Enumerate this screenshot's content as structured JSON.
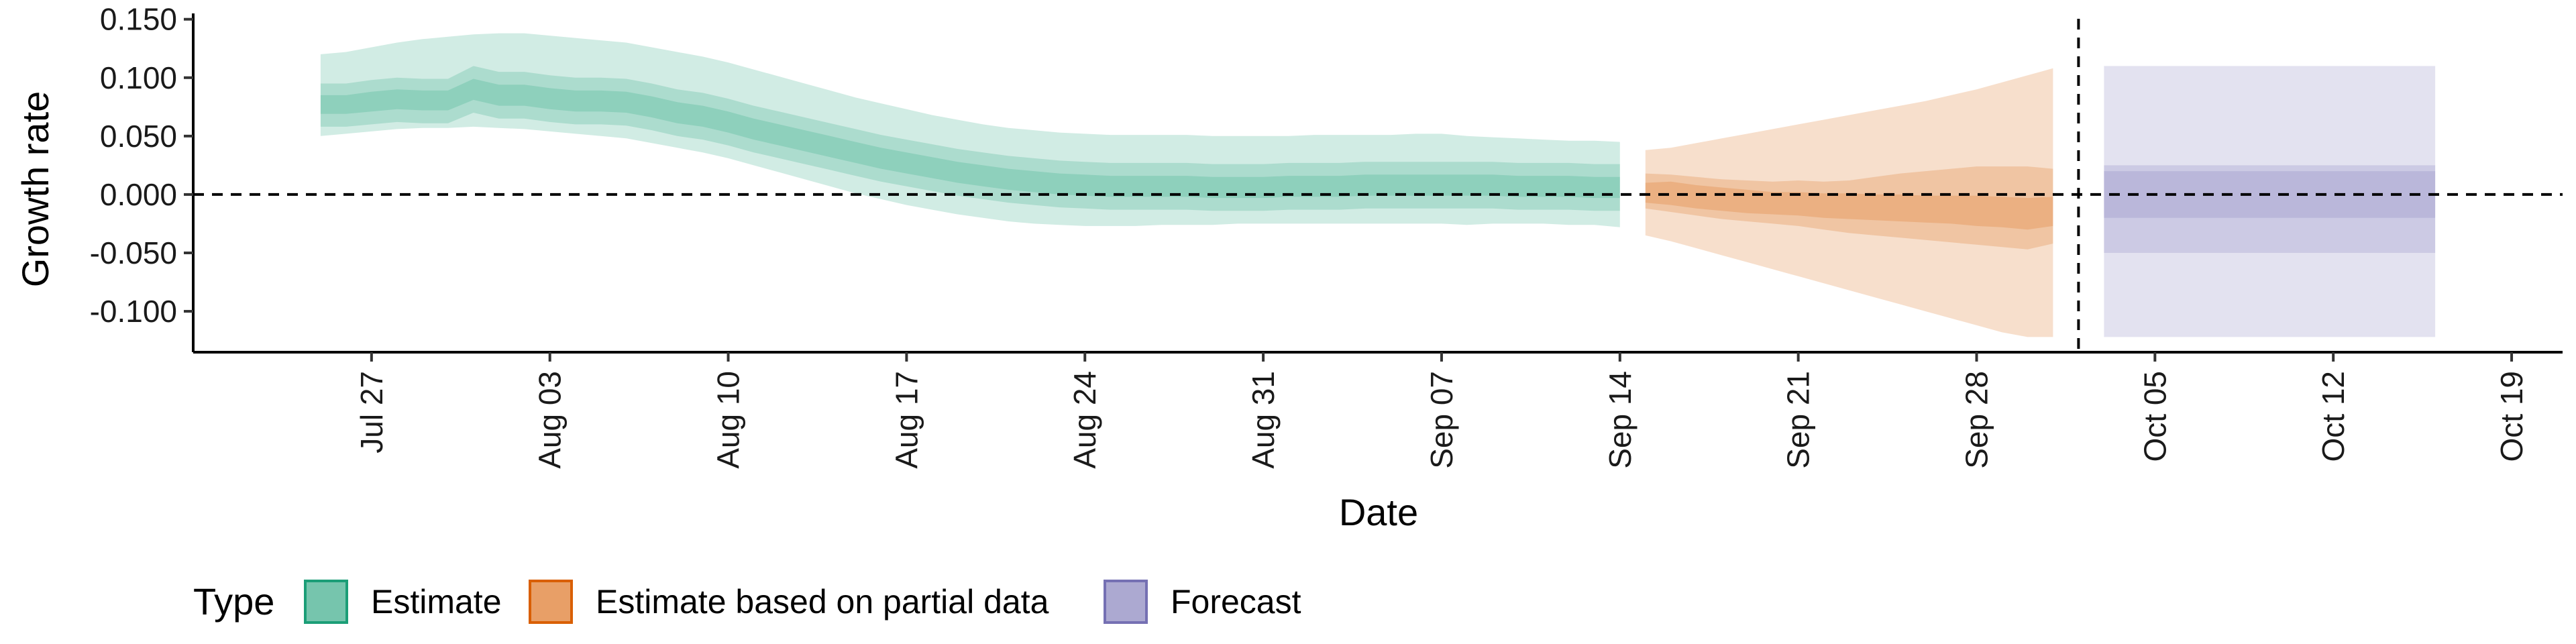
{
  "chart_data": {
    "type": "area",
    "xlabel": "Date",
    "ylabel": "Growth rate",
    "ylim": [
      -0.135,
      0.155
    ],
    "yticks": [
      -0.1,
      -0.05,
      0.0,
      0.05,
      0.1,
      0.15
    ],
    "ytick_labels": [
      "-0.100",
      "-0.050",
      "0.000",
      "0.050",
      "0.100",
      "0.150"
    ],
    "xlim": [
      "2020-07-20",
      "2020-10-21"
    ],
    "xticks": [
      "2020-07-27",
      "2020-08-03",
      "2020-08-10",
      "2020-08-17",
      "2020-08-24",
      "2020-08-31",
      "2020-09-07",
      "2020-09-14",
      "2020-09-21",
      "2020-09-28",
      "2020-10-05",
      "2020-10-12",
      "2020-10-19"
    ],
    "xtick_labels": [
      "Jul 27",
      "Aug 03",
      "Aug 10",
      "Aug 17",
      "Aug 24",
      "Aug 31",
      "Sep 07",
      "Sep 14",
      "Sep 21",
      "Sep 28",
      "Oct 05",
      "Oct 12",
      "Oct 19"
    ],
    "reference_lines": {
      "horizontal_y": 0.0,
      "vertical_x": "2020-10-02"
    },
    "grid": false,
    "legend": {
      "position": "bottom-left",
      "title": "Type",
      "items": [
        {
          "label": "Estimate",
          "color": "#1b9e77"
        },
        {
          "label": "Estimate based on partial data",
          "color": "#d95f02"
        },
        {
          "label": "Forecast",
          "color": "#7570b3"
        }
      ]
    },
    "series": [
      {
        "name": "Estimate",
        "color": "#1b9e77",
        "x": [
          "2020-07-25",
          "2020-07-26",
          "2020-07-27",
          "2020-07-28",
          "2020-07-29",
          "2020-07-30",
          "2020-07-31",
          "2020-08-01",
          "2020-08-02",
          "2020-08-03",
          "2020-08-04",
          "2020-08-05",
          "2020-08-06",
          "2020-08-07",
          "2020-08-08",
          "2020-08-09",
          "2020-08-10",
          "2020-08-11",
          "2020-08-12",
          "2020-08-13",
          "2020-08-14",
          "2020-08-15",
          "2020-08-16",
          "2020-08-17",
          "2020-08-18",
          "2020-08-19",
          "2020-08-20",
          "2020-08-21",
          "2020-08-22",
          "2020-08-23",
          "2020-08-24",
          "2020-08-25",
          "2020-08-26",
          "2020-08-27",
          "2020-08-28",
          "2020-08-29",
          "2020-08-30",
          "2020-08-31",
          "2020-09-01",
          "2020-09-02",
          "2020-09-03",
          "2020-09-04",
          "2020-09-05",
          "2020-09-06",
          "2020-09-07",
          "2020-09-08",
          "2020-09-09",
          "2020-09-10",
          "2020-09-11",
          "2020-09-12",
          "2020-09-13",
          "2020-09-14"
        ],
        "median": [
          0.076,
          0.076,
          0.079,
          0.081,
          0.08,
          0.08,
          0.09,
          0.085,
          0.085,
          0.082,
          0.08,
          0.08,
          0.079,
          0.075,
          0.07,
          0.067,
          0.062,
          0.056,
          0.051,
          0.046,
          0.041,
          0.036,
          0.031,
          0.027,
          0.023,
          0.019,
          0.016,
          0.013,
          0.011,
          0.009,
          0.008,
          0.007,
          0.007,
          0.007,
          0.007,
          0.006,
          0.006,
          0.006,
          0.007,
          0.007,
          0.007,
          0.008,
          0.008,
          0.008,
          0.008,
          0.008,
          0.008,
          0.007,
          0.007,
          0.007,
          0.006,
          0.006
        ],
        "ci20": [
          [
            0.069,
            0.085
          ],
          [
            0.069,
            0.085
          ],
          [
            0.071,
            0.088
          ],
          [
            0.073,
            0.09
          ],
          [
            0.072,
            0.089
          ],
          [
            0.072,
            0.089
          ],
          [
            0.081,
            0.099
          ],
          [
            0.076,
            0.094
          ],
          [
            0.076,
            0.094
          ],
          [
            0.073,
            0.091
          ],
          [
            0.071,
            0.089
          ],
          [
            0.071,
            0.089
          ],
          [
            0.07,
            0.088
          ],
          [
            0.066,
            0.084
          ],
          [
            0.061,
            0.079
          ],
          [
            0.058,
            0.076
          ],
          [
            0.053,
            0.071
          ],
          [
            0.047,
            0.065
          ],
          [
            0.042,
            0.06
          ],
          [
            0.037,
            0.055
          ],
          [
            0.032,
            0.05
          ],
          [
            0.027,
            0.045
          ],
          [
            0.022,
            0.04
          ],
          [
            0.018,
            0.036
          ],
          [
            0.014,
            0.032
          ],
          [
            0.01,
            0.028
          ],
          [
            0.007,
            0.025
          ],
          [
            0.004,
            0.022
          ],
          [
            0.002,
            0.02
          ],
          [
            0.0,
            0.018
          ],
          [
            -0.001,
            0.017
          ],
          [
            -0.002,
            0.016
          ],
          [
            -0.002,
            0.016
          ],
          [
            -0.002,
            0.016
          ],
          [
            -0.002,
            0.016
          ],
          [
            -0.003,
            0.015
          ],
          [
            -0.003,
            0.015
          ],
          [
            -0.003,
            0.015
          ],
          [
            -0.002,
            0.016
          ],
          [
            -0.002,
            0.016
          ],
          [
            -0.002,
            0.016
          ],
          [
            -0.001,
            0.017
          ],
          [
            -0.001,
            0.017
          ],
          [
            -0.001,
            0.017
          ],
          [
            -0.001,
            0.017
          ],
          [
            -0.001,
            0.017
          ],
          [
            -0.001,
            0.017
          ],
          [
            -0.002,
            0.016
          ],
          [
            -0.002,
            0.016
          ],
          [
            -0.002,
            0.016
          ],
          [
            -0.003,
            0.015
          ],
          [
            -0.003,
            0.015
          ]
        ],
        "ci50": [
          [
            0.058,
            0.095
          ],
          [
            0.058,
            0.095
          ],
          [
            0.06,
            0.098
          ],
          [
            0.062,
            0.1
          ],
          [
            0.061,
            0.099
          ],
          [
            0.061,
            0.099
          ],
          [
            0.07,
            0.11
          ],
          [
            0.065,
            0.105
          ],
          [
            0.065,
            0.105
          ],
          [
            0.062,
            0.102
          ],
          [
            0.06,
            0.1
          ],
          [
            0.06,
            0.1
          ],
          [
            0.059,
            0.099
          ],
          [
            0.055,
            0.095
          ],
          [
            0.05,
            0.09
          ],
          [
            0.047,
            0.087
          ],
          [
            0.042,
            0.082
          ],
          [
            0.036,
            0.076
          ],
          [
            0.031,
            0.071
          ],
          [
            0.026,
            0.066
          ],
          [
            0.021,
            0.061
          ],
          [
            0.016,
            0.056
          ],
          [
            0.011,
            0.051
          ],
          [
            0.007,
            0.047
          ],
          [
            0.003,
            0.043
          ],
          [
            -0.001,
            0.039
          ],
          [
            -0.004,
            0.036
          ],
          [
            -0.007,
            0.033
          ],
          [
            -0.009,
            0.031
          ],
          [
            -0.011,
            0.029
          ],
          [
            -0.012,
            0.028
          ],
          [
            -0.013,
            0.027
          ],
          [
            -0.013,
            0.027
          ],
          [
            -0.013,
            0.027
          ],
          [
            -0.013,
            0.027
          ],
          [
            -0.014,
            0.026
          ],
          [
            -0.014,
            0.026
          ],
          [
            -0.014,
            0.026
          ],
          [
            -0.013,
            0.027
          ],
          [
            -0.013,
            0.027
          ],
          [
            -0.013,
            0.027
          ],
          [
            -0.012,
            0.028
          ],
          [
            -0.012,
            0.028
          ],
          [
            -0.012,
            0.028
          ],
          [
            -0.012,
            0.028
          ],
          [
            -0.012,
            0.028
          ],
          [
            -0.012,
            0.028
          ],
          [
            -0.013,
            0.027
          ],
          [
            -0.013,
            0.027
          ],
          [
            -0.013,
            0.027
          ],
          [
            -0.014,
            0.026
          ],
          [
            -0.014,
            0.026
          ]
        ],
        "ci90": [
          [
            0.05,
            0.12
          ],
          [
            0.052,
            0.122
          ],
          [
            0.054,
            0.126
          ],
          [
            0.056,
            0.13
          ],
          [
            0.057,
            0.133
          ],
          [
            0.057,
            0.135
          ],
          [
            0.058,
            0.137
          ],
          [
            0.057,
            0.138
          ],
          [
            0.056,
            0.138
          ],
          [
            0.054,
            0.136
          ],
          [
            0.052,
            0.134
          ],
          [
            0.05,
            0.132
          ],
          [
            0.048,
            0.13
          ],
          [
            0.044,
            0.126
          ],
          [
            0.04,
            0.122
          ],
          [
            0.036,
            0.118
          ],
          [
            0.031,
            0.113
          ],
          [
            0.025,
            0.107
          ],
          [
            0.019,
            0.101
          ],
          [
            0.013,
            0.095
          ],
          [
            0.007,
            0.089
          ],
          [
            0.001,
            0.083
          ],
          [
            -0.004,
            0.078
          ],
          [
            -0.009,
            0.073
          ],
          [
            -0.013,
            0.068
          ],
          [
            -0.017,
            0.064
          ],
          [
            -0.02,
            0.06
          ],
          [
            -0.023,
            0.057
          ],
          [
            -0.025,
            0.055
          ],
          [
            -0.026,
            0.053
          ],
          [
            -0.027,
            0.052
          ],
          [
            -0.027,
            0.051
          ],
          [
            -0.027,
            0.051
          ],
          [
            -0.026,
            0.051
          ],
          [
            -0.026,
            0.051
          ],
          [
            -0.026,
            0.05
          ],
          [
            -0.025,
            0.05
          ],
          [
            -0.025,
            0.05
          ],
          [
            -0.025,
            0.05
          ],
          [
            -0.025,
            0.051
          ],
          [
            -0.025,
            0.051
          ],
          [
            -0.025,
            0.051
          ],
          [
            -0.025,
            0.051
          ],
          [
            -0.025,
            0.052
          ],
          [
            -0.025,
            0.052
          ],
          [
            -0.026,
            0.05
          ],
          [
            -0.025,
            0.049
          ],
          [
            -0.025,
            0.048
          ],
          [
            -0.025,
            0.047
          ],
          [
            -0.026,
            0.046
          ],
          [
            -0.026,
            0.046
          ],
          [
            -0.028,
            0.045
          ]
        ]
      },
      {
        "name": "Estimate based on partial data",
        "color": "#d95f02",
        "x": [
          "2020-09-15",
          "2020-09-16",
          "2020-09-17",
          "2020-09-18",
          "2020-09-19",
          "2020-09-20",
          "2020-09-21",
          "2020-09-22",
          "2020-09-23",
          "2020-09-24",
          "2020-09-25",
          "2020-09-26",
          "2020-09-27",
          "2020-09-28",
          "2020-09-29",
          "2020-09-30",
          "2020-10-01"
        ],
        "median": [
          0.003,
          0.001,
          -0.002,
          -0.004,
          -0.006,
          -0.007,
          -0.006,
          -0.008,
          -0.008,
          -0.009,
          -0.01,
          -0.01,
          -0.012,
          -0.013,
          -0.015,
          -0.018,
          -0.015
        ],
        "ci20": [
          [
            -0.007,
            0.01
          ],
          [
            -0.009,
            0.011
          ],
          [
            -0.012,
            0.008
          ],
          [
            -0.014,
            0.006
          ],
          [
            -0.016,
            0.004
          ],
          [
            -0.017,
            0.002
          ],
          [
            -0.018,
            0.002
          ],
          [
            -0.02,
            0.001
          ],
          [
            -0.021,
            0.001
          ],
          [
            -0.022,
            0.0
          ],
          [
            -0.023,
            0.0
          ],
          [
            -0.024,
            -0.001
          ],
          [
            -0.025,
            -0.001
          ],
          [
            -0.027,
            -0.001
          ],
          [
            -0.028,
            -0.002
          ],
          [
            -0.03,
            -0.003
          ],
          [
            -0.027,
            -0.002
          ]
        ],
        "ci50": [
          [
            -0.012,
            0.018
          ],
          [
            -0.015,
            0.017
          ],
          [
            -0.018,
            0.015
          ],
          [
            -0.021,
            0.013
          ],
          [
            -0.023,
            0.012
          ],
          [
            -0.025,
            0.011
          ],
          [
            -0.027,
            0.012
          ],
          [
            -0.03,
            0.011
          ],
          [
            -0.033,
            0.012
          ],
          [
            -0.035,
            0.015
          ],
          [
            -0.037,
            0.018
          ],
          [
            -0.039,
            0.02
          ],
          [
            -0.041,
            0.022
          ],
          [
            -0.043,
            0.024
          ],
          [
            -0.045,
            0.024
          ],
          [
            -0.047,
            0.024
          ],
          [
            -0.042,
            0.022
          ]
        ],
        "ci90": [
          [
            -0.035,
            0.038
          ],
          [
            -0.04,
            0.04
          ],
          [
            -0.046,
            0.044
          ],
          [
            -0.052,
            0.048
          ],
          [
            -0.058,
            0.052
          ],
          [
            -0.064,
            0.056
          ],
          [
            -0.07,
            0.06
          ],
          [
            -0.076,
            0.064
          ],
          [
            -0.082,
            0.068
          ],
          [
            -0.088,
            0.072
          ],
          [
            -0.094,
            0.076
          ],
          [
            -0.1,
            0.08
          ],
          [
            -0.106,
            0.085
          ],
          [
            -0.112,
            0.09
          ],
          [
            -0.118,
            0.096
          ],
          [
            -0.122,
            0.102
          ],
          [
            -0.122,
            0.108
          ]
        ]
      },
      {
        "name": "Forecast",
        "color": "#7570b3",
        "x": [
          "2020-10-03",
          "2020-10-16"
        ],
        "median": [
          0.0,
          0.0
        ],
        "ci20": [
          [
            -0.02,
            0.02
          ],
          [
            -0.02,
            0.02
          ]
        ],
        "ci50": [
          [
            -0.05,
            0.025
          ],
          [
            -0.05,
            0.025
          ]
        ],
        "ci90": [
          [
            -0.122,
            0.11
          ],
          [
            -0.122,
            0.11
          ]
        ]
      }
    ]
  }
}
